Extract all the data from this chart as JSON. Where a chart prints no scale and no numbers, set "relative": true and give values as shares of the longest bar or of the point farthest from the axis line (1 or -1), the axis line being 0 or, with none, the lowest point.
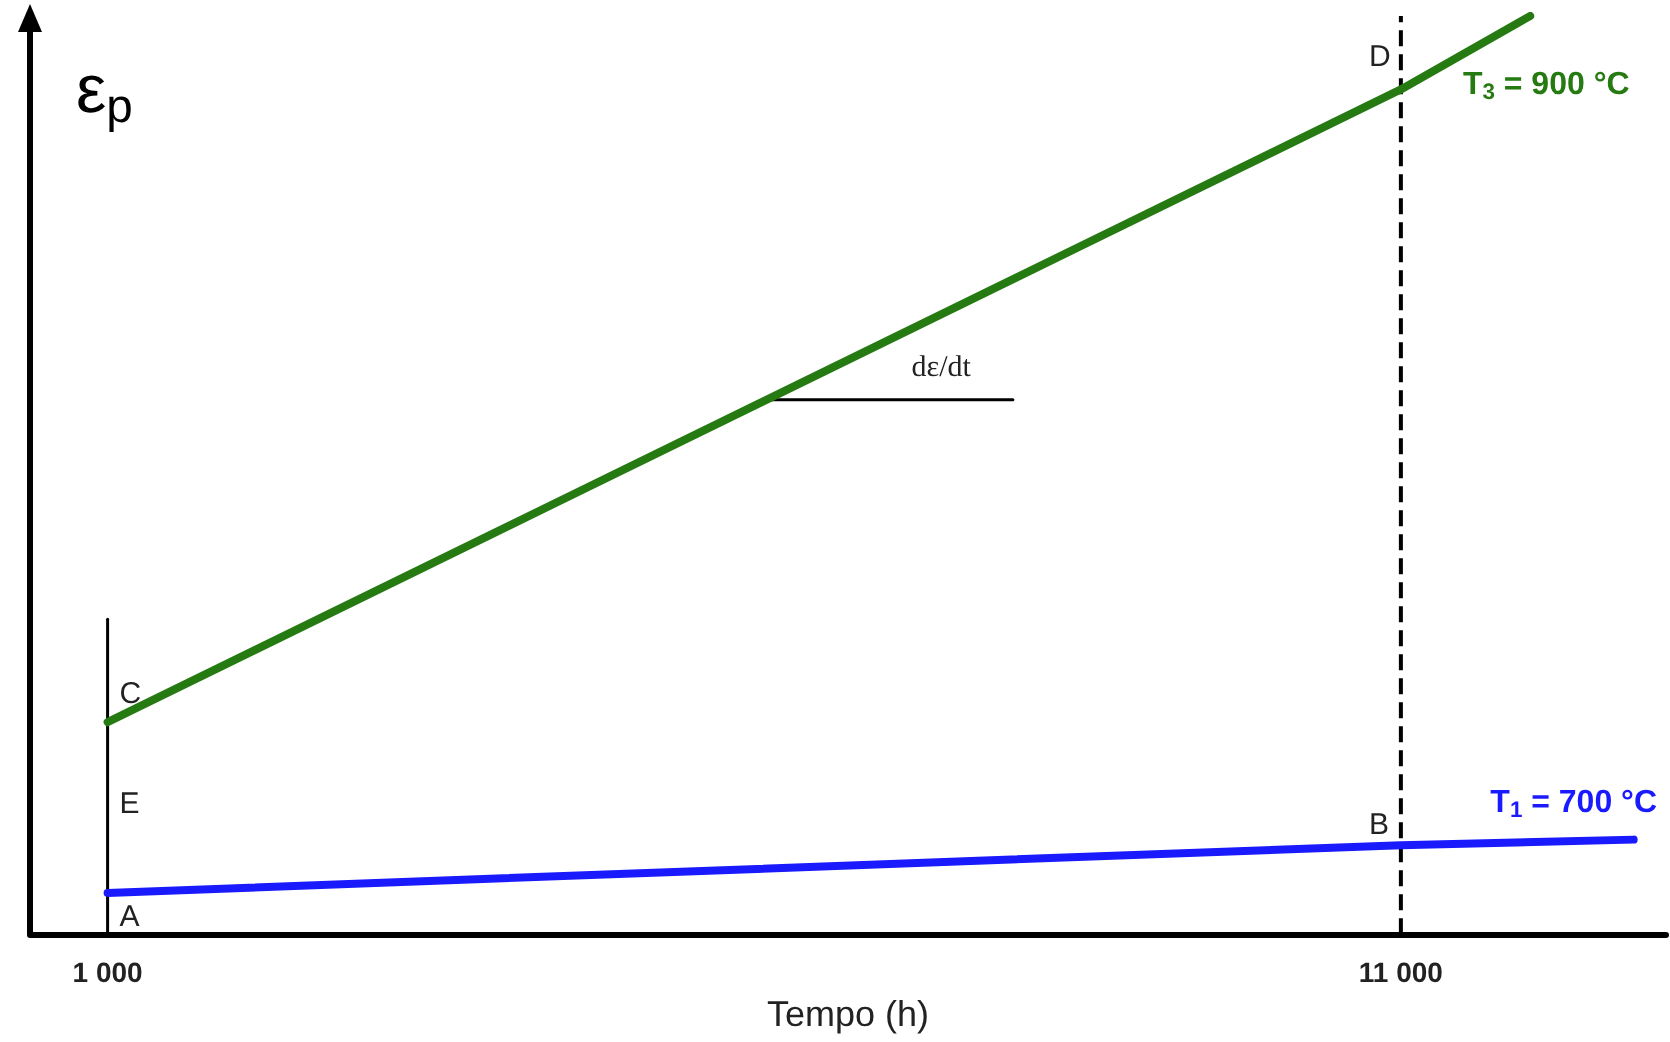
{
  "chart_data": {
    "type": "line",
    "relative": true,
    "xlabel": "Tempo (h)",
    "ylabel": "ε$_{p}$",
    "xlim": [
      400,
      13050
    ],
    "xticks": [
      {
        "value": 1000,
        "label": "1 000"
      },
      {
        "value": 11000,
        "label": "11 000"
      }
    ],
    "grid": false,
    "legend": false,
    "marker": "none",
    "series": [
      {
        "name": "T$_{3}$ = 900 °C",
        "color": "#267a12",
        "x": [
          1000,
          11000,
          12000
        ],
        "values": [
          0.231,
          0.92,
          1
        ]
      },
      {
        "name": "T$_{1}$ = 700 °C",
        "color": "#1a1aff",
        "x": [
          1000,
          11000,
          12800
        ],
        "values": [
          0.045,
          0.097,
          0.103
        ]
      },
      {
        "color": "#000000",
        "x": [
          1000,
          1000
        ],
        "values": [
          0,
          0.343
        ]
      },
      {
        "color": "#000000",
        "x": [
          6100,
          8000
        ],
        "values": [
          0.582,
          0.582
        ]
      }
    ],
    "ref_lines": [
      {
        "axis": "x",
        "value": 11000,
        "line_style": "dashed",
        "color": "#000000"
      }
    ],
    "annotations": [
      {
        "text": "A",
        "x": 1000,
        "y": 0.045
      },
      {
        "text": "B",
        "x": 11000,
        "y": 0.097
      },
      {
        "text": "C",
        "x": 1000,
        "y": 0.231
      },
      {
        "text": "D",
        "x": 11000,
        "y": 0.92
      },
      {
        "text": "E",
        "x": 1000,
        "y": 0.142
      },
      {
        "text": "dε/dt",
        "x": 7000,
        "y": 0.582
      }
    ]
  }
}
